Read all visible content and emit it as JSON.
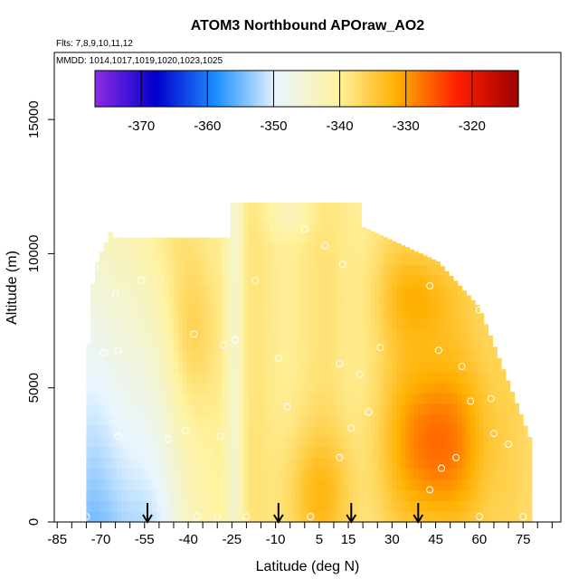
{
  "chart_data": {
    "type": "heatmap",
    "title": "ATOM3 Northbound APOraw_AO2",
    "subtitle_flights": "Flts: 7,8,9,10,11,12",
    "subtitle_dates": "MMDD: 1014,1017,1019,1020,1023,1025",
    "xlabel": "Latitude (deg N)",
    "ylabel": "Altitude (m)",
    "xlim": [
      -86,
      88
    ],
    "ylim": [
      0,
      17500
    ],
    "x_ticks": [
      -85,
      -70,
      -55,
      -40,
      -25,
      -10,
      5,
      15,
      30,
      45,
      60,
      75
    ],
    "y_ticks": [
      0,
      5000,
      10000,
      15000
    ],
    "colorbar": {
      "range": [
        -377,
        -313
      ],
      "ticks": [
        -370,
        -360,
        -350,
        -340,
        -330,
        -320
      ],
      "colors": [
        "#8a2be2",
        "#0000cd",
        "#1e90ff",
        "#e8f5ff",
        "#fff3a0",
        "#ffb000",
        "#ff2000",
        "#a00000"
      ]
    },
    "arrow_latitudes": [
      -54,
      -9,
      16,
      39
    ],
    "observation_points": [
      [
        -75,
        200
      ],
      [
        -72,
        9500
      ],
      [
        -69,
        6300
      ],
      [
        -64,
        6400
      ],
      [
        -65,
        8500
      ],
      [
        -64,
        3200
      ],
      [
        -56,
        9000
      ],
      [
        -38,
        7000
      ],
      [
        -47,
        3100
      ],
      [
        -41,
        3400
      ],
      [
        -28,
        6600
      ],
      [
        -29,
        3200
      ],
      [
        -24,
        6800
      ],
      [
        -17,
        9000
      ],
      [
        -9,
        6100
      ],
      [
        -6,
        4300
      ],
      [
        0,
        10900
      ],
      [
        7,
        10300
      ],
      [
        13,
        9600
      ],
      [
        12,
        5900
      ],
      [
        16,
        3500
      ],
      [
        19,
        5500
      ],
      [
        22,
        4100
      ],
      [
        26,
        6500
      ],
      [
        43,
        8800
      ],
      [
        46,
        6400
      ],
      [
        54,
        5800
      ],
      [
        57,
        4500
      ],
      [
        60,
        7900
      ],
      [
        64,
        4600
      ],
      [
        65,
        3300
      ],
      [
        70,
        2900
      ],
      [
        73,
        6600
      ],
      [
        47,
        2000
      ],
      [
        52,
        2400
      ],
      [
        43,
        1200
      ],
      [
        12,
        2400
      ],
      [
        2,
        200
      ],
      [
        -37,
        200
      ],
      [
        -30,
        200
      ],
      [
        -20,
        200
      ],
      [
        60,
        200
      ],
      [
        75,
        200
      ]
    ]
  }
}
